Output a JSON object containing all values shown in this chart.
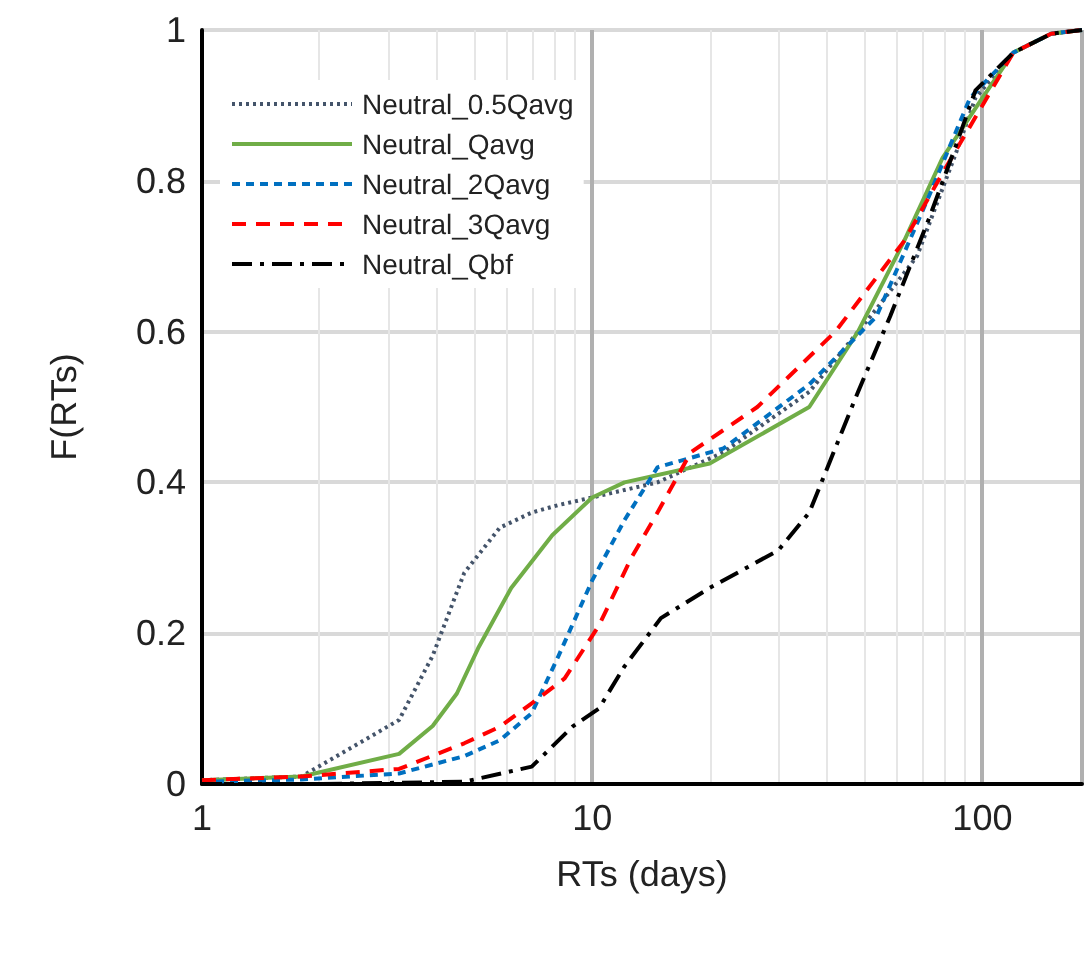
{
  "chart_data": {
    "type": "line",
    "xlabel": "RTs (days)",
    "ylabel": "F(RTs)",
    "log": "x",
    "xlim": [
      1,
      180
    ],
    "xticks": [
      1,
      10,
      100
    ],
    "ylim": [
      0,
      1
    ],
    "yticks": [
      0,
      0.2,
      0.4,
      0.6,
      0.8,
      1
    ],
    "grid": true,
    "legend": "top left",
    "marker": "none",
    "series": [
      {
        "name": "Neutral_0.5Qavg",
        "color": "#44546a",
        "line_style": "dotted",
        "x": [
          1,
          1.8,
          3.2,
          3.9,
          4.7,
          5.8,
          7,
          8.2,
          10,
          14.7,
          21.7,
          36,
          53.5,
          68,
          86,
          96,
          120,
          150,
          180
        ],
        "values": [
          0.005,
          0.01,
          0.085,
          0.17,
          0.28,
          0.34,
          0.36,
          0.37,
          0.38,
          0.4,
          0.44,
          0.52,
          0.63,
          0.7,
          0.84,
          0.91,
          0.97,
          0.995,
          1
        ]
      },
      {
        "name": "Neutral_Qavg",
        "color": "#70ad47",
        "line_style": "solid",
        "x": [
          1,
          1.8,
          3.2,
          3.9,
          4.5,
          5.1,
          6.2,
          7.9,
          10,
          12.1,
          20,
          36,
          48,
          63,
          79,
          100,
          120,
          150,
          180
        ],
        "values": [
          0.005,
          0.01,
          0.04,
          0.077,
          0.12,
          0.18,
          0.26,
          0.33,
          0.38,
          0.4,
          0.425,
          0.5,
          0.6,
          0.72,
          0.83,
          0.91,
          0.97,
          0.995,
          1
        ]
      },
      {
        "name": "Neutral_2Qavg",
        "color": "#0070c0",
        "line_style": "dashed",
        "x": [
          1,
          1.8,
          3.2,
          4.7,
          5.8,
          7,
          8.2,
          10,
          12.1,
          14.7,
          21.7,
          36,
          53.5,
          73,
          93,
          120,
          150,
          180
        ],
        "values": [
          0.003,
          0.006,
          0.014,
          0.037,
          0.058,
          0.094,
          0.17,
          0.27,
          0.35,
          0.42,
          0.445,
          0.53,
          0.62,
          0.78,
          0.91,
          0.97,
          0.995,
          1
        ]
      },
      {
        "name": "Neutral_3Qavg",
        "color": "#ff0000",
        "line_style": "dashed",
        "x": [
          1,
          1.8,
          3.2,
          4.7,
          5.8,
          7,
          8.5,
          10.4,
          12.6,
          14.7,
          17.9,
          26.5,
          42,
          63,
          79,
          100,
          120,
          150,
          180
        ],
        "values": [
          0.005,
          0.01,
          0.02,
          0.054,
          0.076,
          0.107,
          0.14,
          0.21,
          0.3,
          0.36,
          0.44,
          0.5,
          0.6,
          0.72,
          0.81,
          0.9,
          0.97,
          0.995,
          1
        ]
      },
      {
        "name": "Neutral_Qbf",
        "color": "#000000",
        "line_style": "dashed",
        "x": [
          1,
          2,
          4.7,
          7,
          8.9,
          10.4,
          12.1,
          15,
          20,
          30,
          36,
          48,
          58,
          73,
          86,
          96,
          120,
          150,
          180
        ],
        "values": [
          0,
          0,
          0.003,
          0.023,
          0.076,
          0.1,
          0.156,
          0.22,
          0.26,
          0.31,
          0.36,
          0.52,
          0.62,
          0.75,
          0.85,
          0.92,
          0.97,
          0.995,
          1
        ]
      }
    ]
  }
}
